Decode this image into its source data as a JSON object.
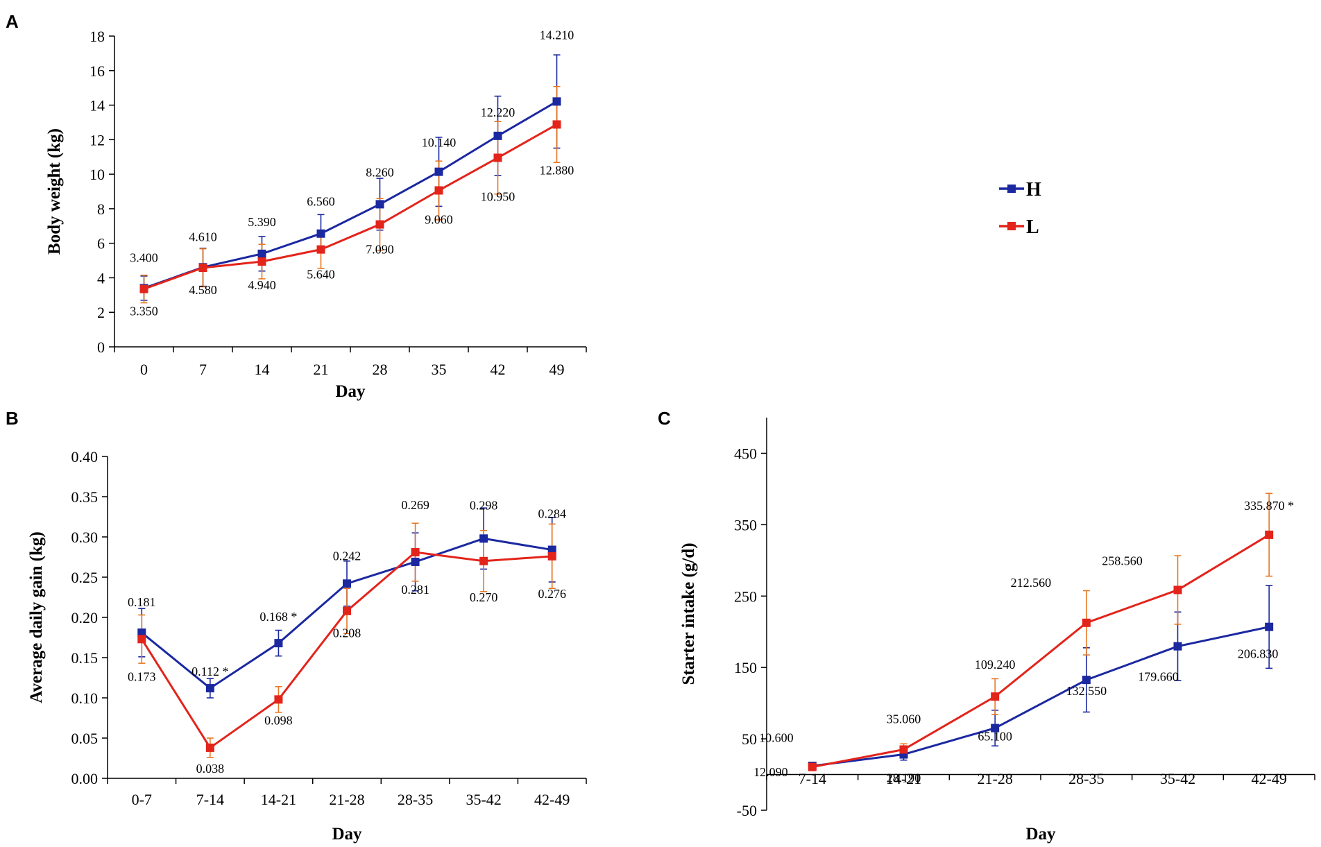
{
  "colors": {
    "H": "#1b28a0",
    "L": "#e3241b",
    "L_error": "#e87722"
  },
  "legend": [
    {
      "name": "H",
      "color_key": "H"
    },
    {
      "name": "L",
      "color_key": "L"
    }
  ],
  "chart_data": [
    {
      "panel": "A",
      "type": "line",
      "xlabel": "Day",
      "ylabel": "Body weight (kg)",
      "ylim": [
        0,
        18
      ],
      "yticks": [
        0,
        2,
        4,
        6,
        8,
        10,
        12,
        14,
        16,
        18
      ],
      "ytick_labels": [
        "0",
        "2",
        "4",
        "6",
        "8",
        "10",
        "12",
        "14",
        "16",
        "18"
      ],
      "categories": [
        "0",
        "7",
        "14",
        "21",
        "28",
        "35",
        "42",
        "49"
      ],
      "series": [
        {
          "name": "H",
          "values": [
            3.4,
            4.61,
            5.39,
            6.56,
            8.26,
            10.14,
            12.22,
            14.21
          ],
          "errors": [
            0.7,
            1.1,
            1.0,
            1.1,
            1.5,
            2.0,
            2.3,
            2.7
          ],
          "labels": [
            "3.400",
            "4.610",
            "5.390",
            "6.560",
            "8.260",
            "10.140",
            "12.220",
            "14.210"
          ]
        },
        {
          "name": "L",
          "values": [
            3.35,
            4.58,
            4.94,
            5.64,
            7.09,
            9.06,
            10.95,
            12.88
          ],
          "errors": [
            0.8,
            1.1,
            1.0,
            1.1,
            1.5,
            1.7,
            2.1,
            2.2
          ],
          "labels": [
            "3.350",
            "4.580",
            "4.940",
            "5.640",
            "7.090",
            "9.060",
            "10.950",
            "12.880"
          ]
        }
      ]
    },
    {
      "panel": "B",
      "type": "line",
      "xlabel": "Day",
      "ylabel": "Average daily gain (kg)",
      "ylim": [
        0,
        0.4
      ],
      "yticks": [
        0,
        0.05,
        0.1,
        0.15,
        0.2,
        0.25,
        0.3,
        0.35,
        0.4
      ],
      "ytick_labels": [
        "0.00",
        "0.05",
        "0.10",
        "0.15",
        "0.20",
        "0.25",
        "0.30",
        "0.35",
        "0.40"
      ],
      "categories": [
        "0-7",
        "7-14",
        "14-21",
        "21-28",
        "28-35",
        "35-42",
        "42-49"
      ],
      "series": [
        {
          "name": "H",
          "values": [
            0.181,
            0.112,
            0.168,
            0.242,
            0.269,
            0.298,
            0.284
          ],
          "errors": [
            0.03,
            0.012,
            0.016,
            0.028,
            0.036,
            0.038,
            0.04
          ],
          "labels": [
            "0.181",
            "0.112 *",
            "0.168 *",
            "0.242",
            "0.269",
            "0.298",
            "0.284"
          ]
        },
        {
          "name": "L",
          "values": [
            0.173,
            0.038,
            0.098,
            0.208,
            0.281,
            0.27,
            0.276
          ],
          "errors": [
            0.03,
            0.012,
            0.016,
            0.028,
            0.036,
            0.038,
            0.04
          ],
          "labels": [
            "0.173",
            "0.038",
            "0.098",
            "0.208",
            "0.281",
            "0.270",
            "0.276"
          ]
        }
      ]
    },
    {
      "panel": "C",
      "type": "line",
      "xlabel": "Day",
      "ylabel": "Starter  intake (g/d)",
      "ylim": [
        -50,
        500
      ],
      "yticks": [
        -50,
        50,
        150,
        250,
        350,
        450
      ],
      "ytick_labels": [
        "-50",
        "50",
        "150",
        "250",
        "350",
        "450"
      ],
      "categories": [
        "7-14",
        "14-21",
        "21-28",
        "28-35",
        "35-42",
        "42-49"
      ],
      "series": [
        {
          "name": "H",
          "values": [
            12.09,
            28.19,
            65.1,
            132.55,
            179.66,
            206.83
          ],
          "errors": [
            5,
            8,
            25,
            45,
            48,
            58
          ],
          "labels": [
            "12.090",
            "28.190",
            "65.100",
            "132.550",
            "179.660",
            "206.830"
          ]
        },
        {
          "name": "L",
          "values": [
            10.6,
            35.06,
            109.24,
            212.56,
            258.56,
            335.87
          ],
          "errors": [
            5,
            8,
            25,
            45,
            48,
            58
          ],
          "labels": [
            "10.600",
            "35.060",
            "109.240",
            "212.560",
            "258.560",
            "335.870  *"
          ]
        }
      ]
    }
  ]
}
